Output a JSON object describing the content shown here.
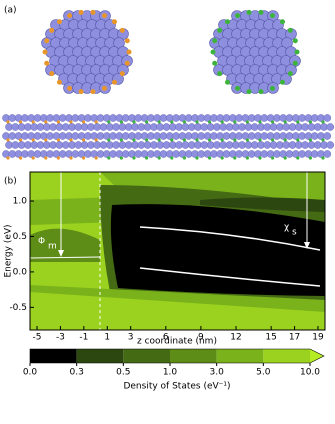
{
  "panel_a": {
    "label": "(a)"
  },
  "chart_data": {
    "type": "contour",
    "label": "(b)",
    "x_label": "z coordinate (nm)",
    "y_label": "Energy (eV)",
    "xlim": [
      -5.6,
      19.6
    ],
    "xticks": [
      -5,
      -3,
      -1,
      1,
      3,
      6,
      9,
      12,
      15,
      17,
      19
    ],
    "ylim": [
      -0.82,
      1.41
    ],
    "yticks": [
      {
        "value": 1.0,
        "label": "1.0"
      },
      {
        "value": 0.5,
        "label": "0.5"
      },
      {
        "value": 0.0,
        "label": "0.0"
      },
      {
        "value": -0.5,
        "label": "-0.5"
      }
    ],
    "annotations": [
      "Φ",
      "m",
      "χ",
      "s"
    ],
    "colorbar": {
      "label": "Density of States (eV⁻¹)",
      "ticks": [
        {
          "value": 0.0,
          "label": "0.0"
        },
        {
          "value": 0.3,
          "label": "0.3"
        },
        {
          "value": 0.5,
          "label": "0.5"
        },
        {
          "value": 1.0,
          "label": "1.0"
        },
        {
          "value": 3.0,
          "label": "3.0"
        },
        {
          "value": 5.0,
          "label": "5.0"
        },
        {
          "value": 10.0,
          "label": "10.0"
        }
      ],
      "colors": [
        "#000000",
        "#2d4710",
        "#456a14",
        "#5d8c17",
        "#7ab21b",
        "#9ad21f",
        "#b5ec24"
      ]
    }
  }
}
